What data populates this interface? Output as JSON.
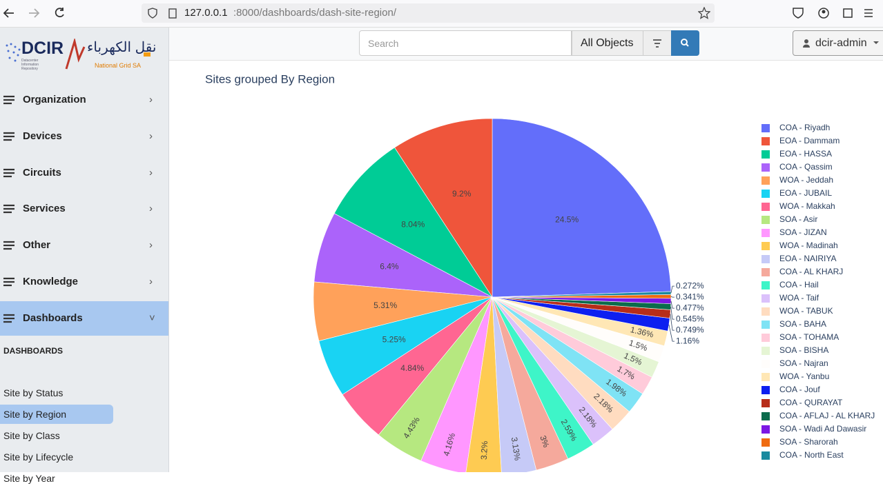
{
  "browser": {
    "url_host": "127.0.0.1",
    "url_path": ":8000/dashboards/dash-site-region/"
  },
  "sidebar": {
    "logo": "DCIR",
    "logo_sub": "Datacenter Information Repository",
    "brand_arabic": "نقل الكهرباء",
    "brand_latin": "National Grid SA",
    "nav": [
      "Organization",
      "Devices",
      "Circuits",
      "Services",
      "Other",
      "Knowledge",
      "Dashboards"
    ],
    "section": "DASHBOARDS",
    "links": [
      "Site by Status",
      "Site by Region",
      "Site by Class",
      "Site by Lifecycle",
      "Site by Year"
    ]
  },
  "header": {
    "search_placeholder": "Search",
    "scope": "All Objects",
    "user": "dcir-admin"
  },
  "chart_data": {
    "type": "pie",
    "title": "Sites grouped By Region",
    "categories": [
      "COA - Riyadh",
      "EOA - Dammam",
      "EOA - HASSA",
      "COA - Qassim",
      "WOA - Jeddah",
      "EOA - JUBAIL",
      "WOA - Makkah",
      "SOA - Asir",
      "SOA - JIZAN",
      "WOA - Madinah",
      "EOA - NAIRIYA",
      "COA - AL KHARJ",
      "COA - Hail",
      "WOA - Taif",
      "WOA - TABUK",
      "SOA - BAHA",
      "SOA - TOHAMA",
      "SOA - BISHA",
      "SOA - Najran",
      "WOA - Yanbu",
      "COA - Jouf",
      "COA - QURAYAT",
      "COA - AFLAJ - AL KHARJ",
      "SOA - Wadi Ad Dawasir",
      "SOA - Sharorah",
      "COA - North East"
    ],
    "values": [
      24.5,
      9.2,
      8.04,
      6.4,
      5.31,
      5.25,
      4.84,
      4.43,
      4.16,
      3.2,
      3.13,
      3,
      2.59,
      2.18,
      2.18,
      1.98,
      1.7,
      1.5,
      1.5,
      1.36,
      1.16,
      0.749,
      0.545,
      0.477,
      0.341,
      0.272
    ],
    "value_labels": [
      "24.5%",
      "9.2%",
      "8.04%",
      "6.4%",
      "5.31%",
      "5.25%",
      "4.84%",
      "4.43%",
      "4.16%",
      "3.2%",
      "3.13%",
      "3%",
      "2.59%",
      "2.18%",
      "2.18%",
      "1.98%",
      "1.7%",
      "1.5%",
      "1.5%",
      "1.36%",
      "1.16%",
      "0.749%",
      "0.545%",
      "0.477%",
      "0.341%",
      "0.272%"
    ],
    "colors": [
      "#636efa",
      "#ef553b",
      "#00cc96",
      "#ab63fa",
      "#ffa15a",
      "#19d3f3",
      "#ff6692",
      "#b6e880",
      "#ff97ff",
      "#fecb52",
      "#c6caf7",
      "#f5a99c",
      "#3ef5c8",
      "#dbc1fb",
      "#ffdcc0",
      "#7fe3f5",
      "#ffcbda",
      "#e5f5d4",
      "#fffdfb",
      "#ffe7b5",
      "#0d1ff0",
      "#b72d1a",
      "#0b6b4c",
      "#7b18e3",
      "#ef6b10",
      "#1a8a9f"
    ],
    "legend": "right"
  }
}
